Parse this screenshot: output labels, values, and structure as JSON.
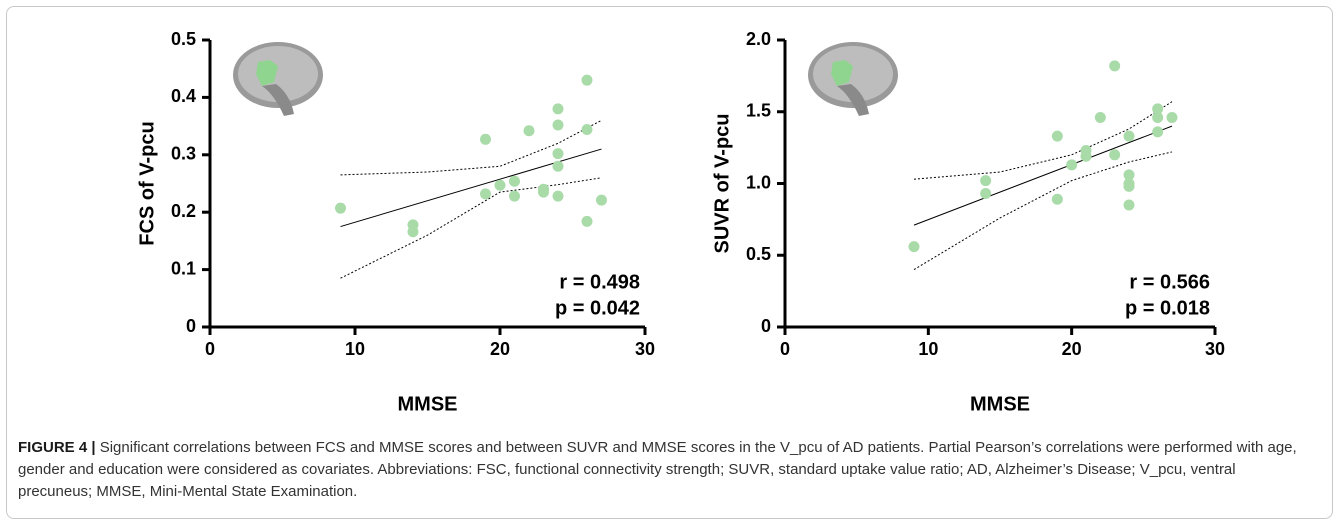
{
  "chart_data": [
    {
      "type": "scatter",
      "x_label": "MMSE",
      "y_label": "FCS of V-pcu",
      "color": "#a9dba9",
      "x": [
        9,
        14,
        14,
        19,
        19,
        20,
        21,
        21,
        22,
        23,
        23,
        24,
        24,
        24,
        24,
        24,
        26,
        26,
        26,
        27
      ],
      "values": [
        0.207,
        0.178,
        0.166,
        0.327,
        0.232,
        0.247,
        0.254,
        0.228,
        0.342,
        0.24,
        0.235,
        0.38,
        0.352,
        0.302,
        0.28,
        0.228,
        0.43,
        0.344,
        0.184,
        0.221
      ],
      "fit_line": {
        "x": [
          9,
          27
        ],
        "y": [
          0.175,
          0.31
        ]
      },
      "confidence_band": {
        "x": [
          9,
          15,
          20,
          24,
          27
        ],
        "upper": [
          0.265,
          0.27,
          0.28,
          0.32,
          0.36
        ],
        "lower": [
          0.085,
          0.16,
          0.235,
          0.248,
          0.26
        ]
      },
      "xlim": [
        0,
        30
      ],
      "xticks": [
        0,
        10,
        20,
        30
      ],
      "ylim": [
        0,
        0.5
      ],
      "yticks": [
        0,
        0.1,
        0.2,
        0.3,
        0.4,
        0.5
      ],
      "annotations": [
        "r = 0.498",
        "p = 0.042"
      ]
    },
    {
      "type": "scatter",
      "x_label": "MMSE",
      "y_label": "SUVR of V-pcu",
      "color": "#a9dba9",
      "x": [
        9,
        14,
        14,
        19,
        19,
        20,
        21,
        21,
        22,
        23,
        23,
        24,
        24,
        24,
        24,
        24,
        26,
        26,
        26,
        27
      ],
      "values": [
        0.56,
        1.02,
        0.93,
        1.33,
        0.89,
        1.13,
        1.23,
        1.19,
        1.46,
        1.82,
        1.2,
        1.33,
        1.06,
        1.0,
        0.98,
        0.85,
        1.52,
        1.46,
        1.36,
        1.46
      ],
      "fit_line": {
        "x": [
          9,
          27
        ],
        "y": [
          0.71,
          1.4
        ]
      },
      "confidence_band": {
        "x": [
          9,
          15,
          20,
          24,
          27
        ],
        "upper": [
          1.03,
          1.08,
          1.2,
          1.38,
          1.57
        ],
        "lower": [
          0.4,
          0.76,
          1.02,
          1.15,
          1.22
        ]
      },
      "xlim": [
        0,
        30
      ],
      "xticks": [
        0,
        10,
        20,
        30
      ],
      "ylim": [
        0,
        2.0
      ],
      "yticks": [
        0,
        0.5,
        {
          "value": 1.0,
          "label": "1.0"
        },
        1.5,
        {
          "value": 2.0,
          "label": "2.0"
        }
      ],
      "annotations": [
        "r = 0.566",
        "p = 0.018"
      ]
    }
  ],
  "caption": {
    "label": "FIGURE 4 |",
    "text": "Significant correlations between FCS and MMSE scores and between SUVR and MMSE scores in the V_pcu of AD patients. Partial Pearson’s correlations were performed with age, gender and education were considered as covariates. Abbreviations: FSC, functional connectivity strength; SUVR, standard uptake value ratio; AD, Alzheimer’s Disease; V_pcu, ventral precuneus; MMSE, Mini-Mental State Examination."
  }
}
